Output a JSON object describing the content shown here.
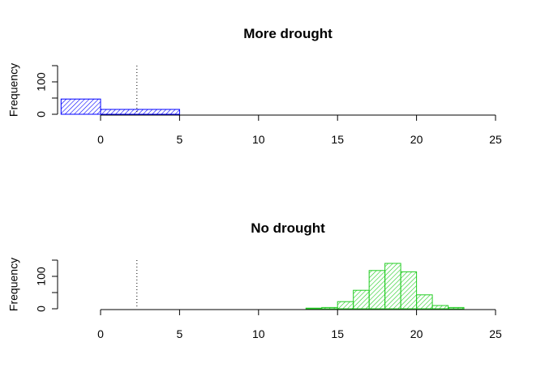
{
  "chart_data": [
    {
      "type": "bar",
      "subtype": "histogram",
      "title": "More drought",
      "xlabel": "",
      "ylabel": "Frequency",
      "xlim": [
        -2.5,
        25
      ],
      "ylim": [
        0,
        150
      ],
      "x_ticks": [
        0,
        5,
        10,
        15,
        20,
        25
      ],
      "y_ticks": [
        0,
        100
      ],
      "bins": [
        {
          "x0": -2.5,
          "x1": 0,
          "count": 47
        },
        {
          "x0": 0,
          "x1": 5,
          "count": 15
        }
      ],
      "reference_line_x": 2.3,
      "color": "#0000ff",
      "fill_pattern": "hatched"
    },
    {
      "type": "bar",
      "subtype": "histogram",
      "title": "No drought",
      "xlabel": "",
      "ylabel": "Frequency",
      "xlim": [
        -2.5,
        25
      ],
      "ylim": [
        0,
        150
      ],
      "x_ticks": [
        0,
        5,
        10,
        15,
        20,
        25
      ],
      "y_ticks": [
        0,
        100
      ],
      "bins": [
        {
          "x0": 13,
          "x1": 14,
          "count": 2
        },
        {
          "x0": 14,
          "x1": 15,
          "count": 4
        },
        {
          "x0": 15,
          "x1": 16,
          "count": 22
        },
        {
          "x0": 16,
          "x1": 17,
          "count": 57
        },
        {
          "x0": 17,
          "x1": 18,
          "count": 118
        },
        {
          "x0": 18,
          "x1": 19,
          "count": 140
        },
        {
          "x0": 19,
          "x1": 20,
          "count": 114
        },
        {
          "x0": 20,
          "x1": 21,
          "count": 43
        },
        {
          "x0": 21,
          "x1": 22,
          "count": 10
        },
        {
          "x0": 22,
          "x1": 23,
          "count": 4
        }
      ],
      "reference_line_x": 2.3,
      "color": "#22cc22",
      "fill_pattern": "hatched"
    }
  ]
}
